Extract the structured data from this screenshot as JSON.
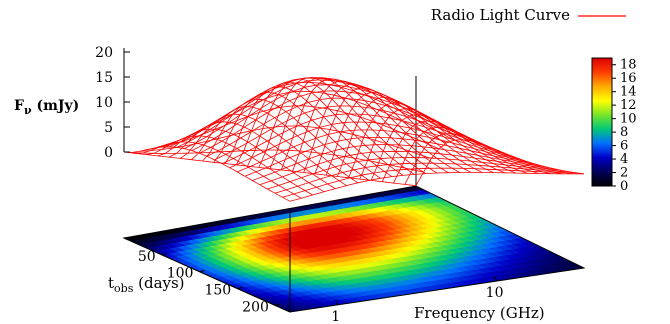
{
  "chart_data": {
    "type": "surface3d",
    "title": "",
    "legend": {
      "entry": "Radio Light Curve",
      "color": "#ff0000",
      "placement": "top-right"
    },
    "zlabel": {
      "main": "F",
      "sub": "ν",
      "rest": " (mJy)"
    },
    "ylabel": {
      "main": "t",
      "sub": "obs",
      "rest": " (days)"
    },
    "xlabel": "Frequency (GHz)",
    "z_ticks": [
      "20",
      "15",
      "10",
      "5",
      "0"
    ],
    "z_tick_values": [
      20,
      15,
      10,
      5,
      0
    ],
    "t_ticks": [
      "50",
      "100",
      "150",
      "200"
    ],
    "t_tick_values": [
      50,
      100,
      150,
      200
    ],
    "freq_ticks": [
      "1",
      "10"
    ],
    "freq_tick_values": [
      1,
      10
    ],
    "zlim": [
      0,
      20
    ],
    "t_range": [
      0,
      220
    ],
    "log_freq_range": [
      -0.3,
      1.55
    ],
    "colorbar": {
      "ticks": [
        "18",
        "16",
        "14",
        "12",
        "10",
        "8",
        "6",
        "4",
        "2",
        "0"
      ],
      "tick_values": [
        18,
        16,
        14,
        12,
        10,
        8,
        6,
        4,
        2,
        0
      ],
      "range": [
        0,
        19
      ],
      "colors": [
        "#000000",
        "#00005a",
        "#0000c8",
        "#0070ff",
        "#00c878",
        "#78e628",
        "#ffff00",
        "#ffaa00",
        "#ff3c00",
        "#dc0000"
      ]
    },
    "model": {
      "description_free": true,
      "peak_flux": 20,
      "peak_time": 70,
      "peak_log_freq": 0.65,
      "line_color": "#ff0000"
    },
    "grid": false
  }
}
